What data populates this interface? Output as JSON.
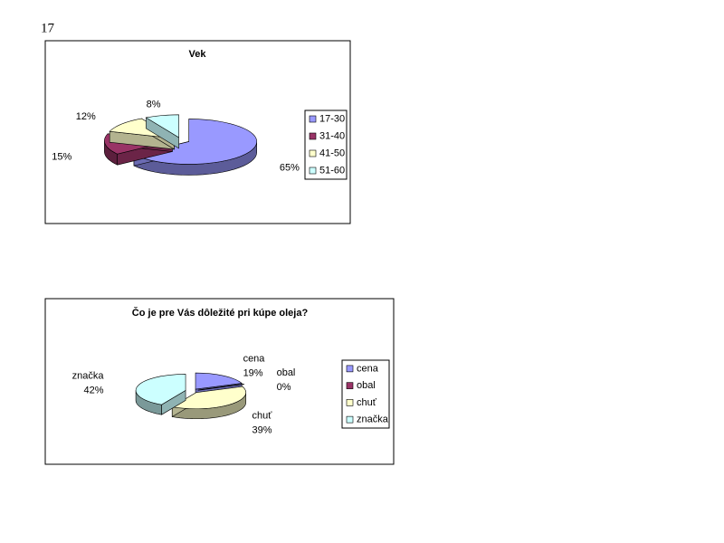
{
  "page_number": "17",
  "chart_data": [
    {
      "type": "pie",
      "title": "Vek",
      "categories": [
        "17-30",
        "31-40",
        "41-50",
        "51-60"
      ],
      "values": [
        65,
        15,
        12,
        8
      ],
      "value_labels": [
        "65%",
        "15%",
        "12%",
        "8%"
      ],
      "colors": [
        "#9999ff",
        "#993366",
        "#ffffcc",
        "#ccffff"
      ],
      "legend": "right",
      "category_labels": false
    },
    {
      "type": "pie",
      "title": "Čo je pre Vás dôležité pri kúpe oleja?",
      "categories": [
        "cena",
        "obal",
        "chuť",
        "značka"
      ],
      "values": [
        19,
        0,
        39,
        42
      ],
      "value_labels": [
        "19%",
        "0%",
        "39%",
        "42%"
      ],
      "colors": [
        "#9999ff",
        "#993366",
        "#ffffcc",
        "#ccffff"
      ],
      "legend": "right",
      "category_labels": true
    }
  ]
}
